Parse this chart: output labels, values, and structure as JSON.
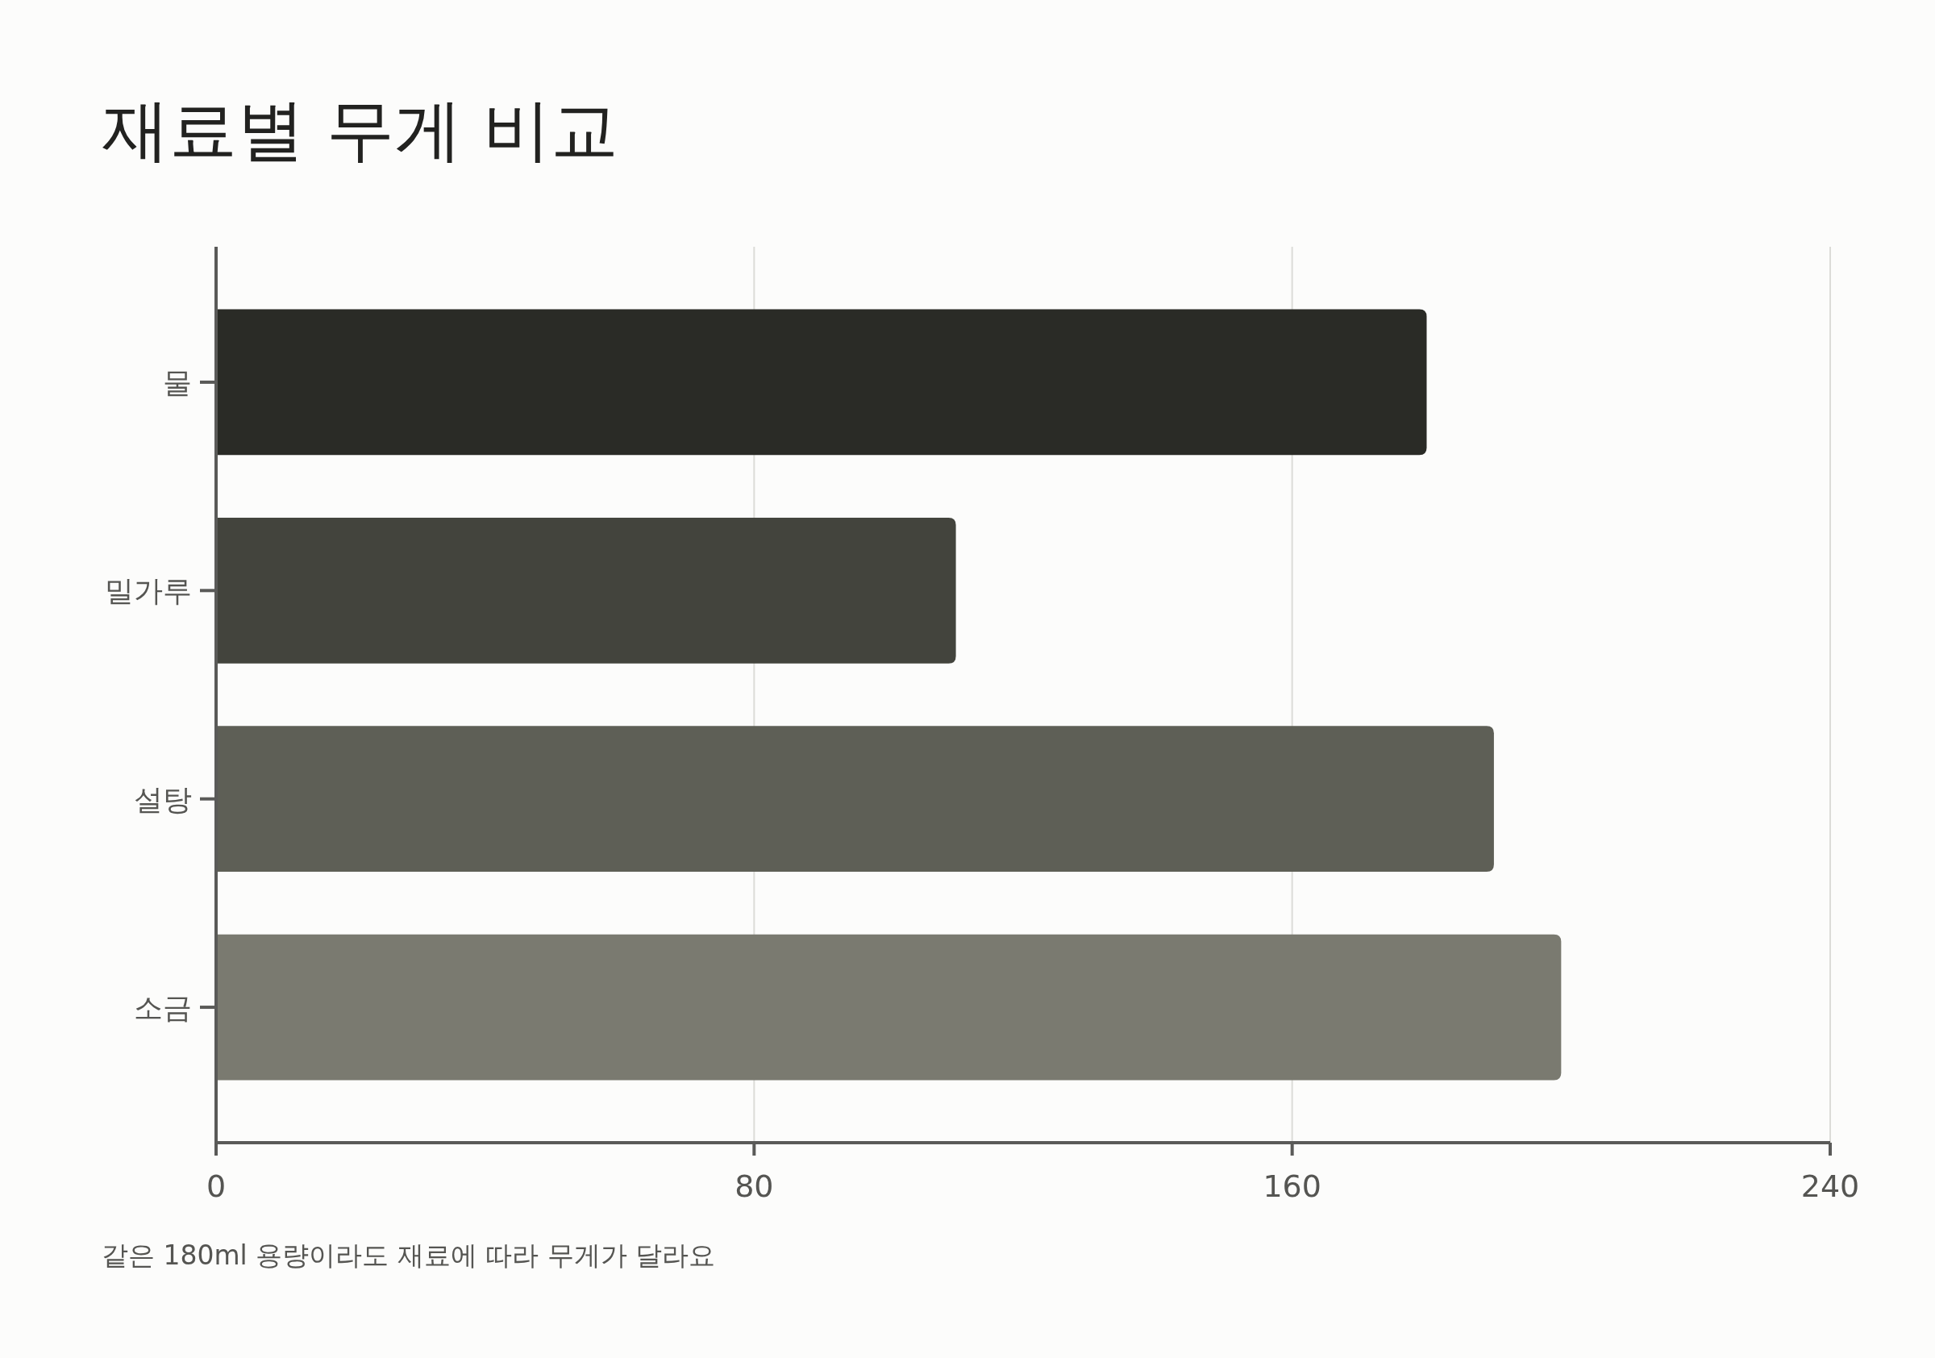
{
  "chart_data": {
    "type": "bar",
    "orientation": "horizontal",
    "title": "재료별 무게 비교",
    "categories": [
      "물",
      "밀가루",
      "설탕",
      "소금"
    ],
    "values": [
      180,
      110,
      190,
      200
    ],
    "colors": [
      "#2a2b26",
      "#43443d",
      "#5e5f56",
      "#7a7a70"
    ],
    "xlim": [
      0,
      240
    ],
    "xticks": [
      0,
      80,
      160,
      240
    ],
    "grid": "x",
    "annotations": [
      "같은 180ml 용량이라도 재료에 따라 무게가 달라요"
    ]
  }
}
